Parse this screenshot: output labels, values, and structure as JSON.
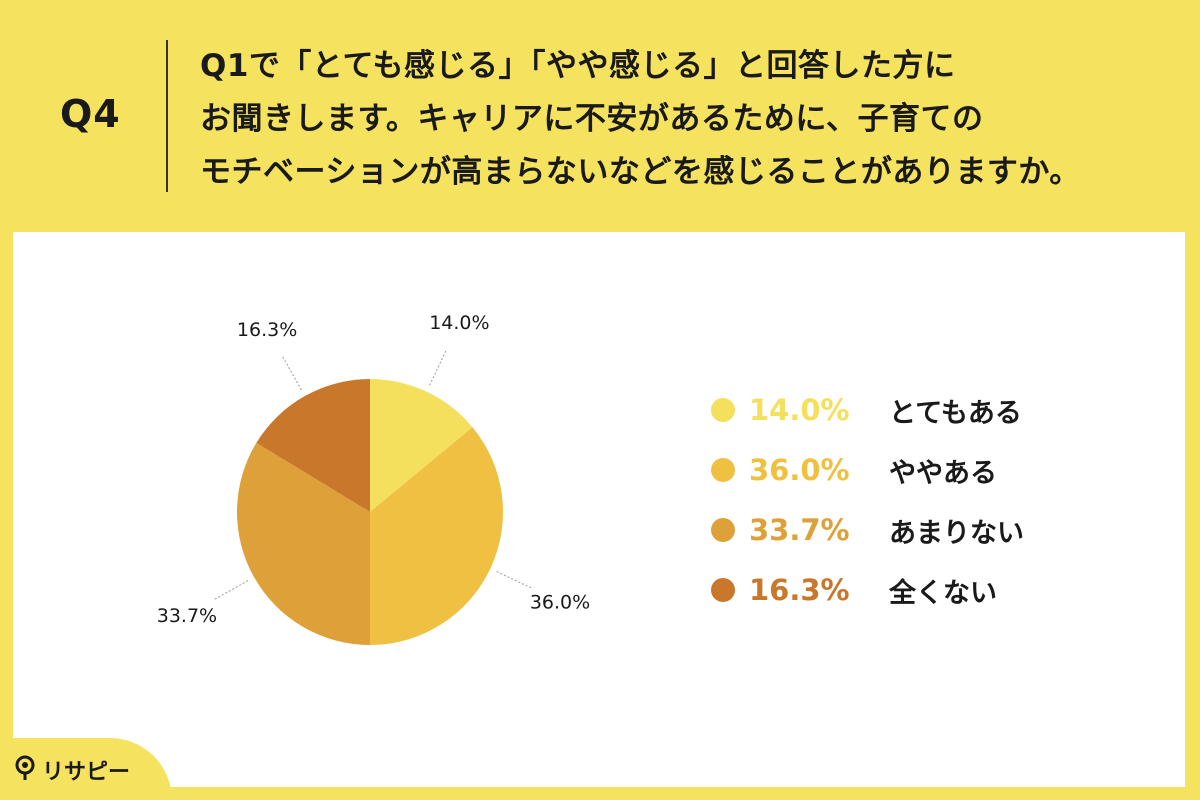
{
  "header": {
    "q_label": "Q4",
    "question": "Q1で「とても感じる」「やや感じる」と回答した方に\nお聞きします。キャリアに不安があるために、子育ての\nモチベーションが高まらないなどを感じることがありますか。"
  },
  "chart_data": {
    "type": "pie",
    "categories": [
      "とてもある",
      "ややある",
      "あまりない",
      "全くない"
    ],
    "values": [
      14.0,
      36.0,
      33.7,
      16.3
    ],
    "labels": [
      "14.0%",
      "36.0%",
      "33.7%",
      "16.3%"
    ],
    "colors": [
      "#f4e05c",
      "#efc041",
      "#dea038",
      "#c9772b"
    ],
    "start": "12 o'clock",
    "direction": "clockwise",
    "legend_position": "right"
  },
  "legend": [
    {
      "pct": "14.0%",
      "label": "とてもある",
      "color": "#f4e05c"
    },
    {
      "pct": "36.0%",
      "label": "ややある",
      "color": "#efc041"
    },
    {
      "pct": "33.7%",
      "label": "あまりない",
      "color": "#dea038"
    },
    {
      "pct": "16.3%",
      "label": "全くない",
      "color": "#c9772b"
    }
  ],
  "brand": {
    "name": "リサピー",
    "icon": "location-pin-icon"
  }
}
